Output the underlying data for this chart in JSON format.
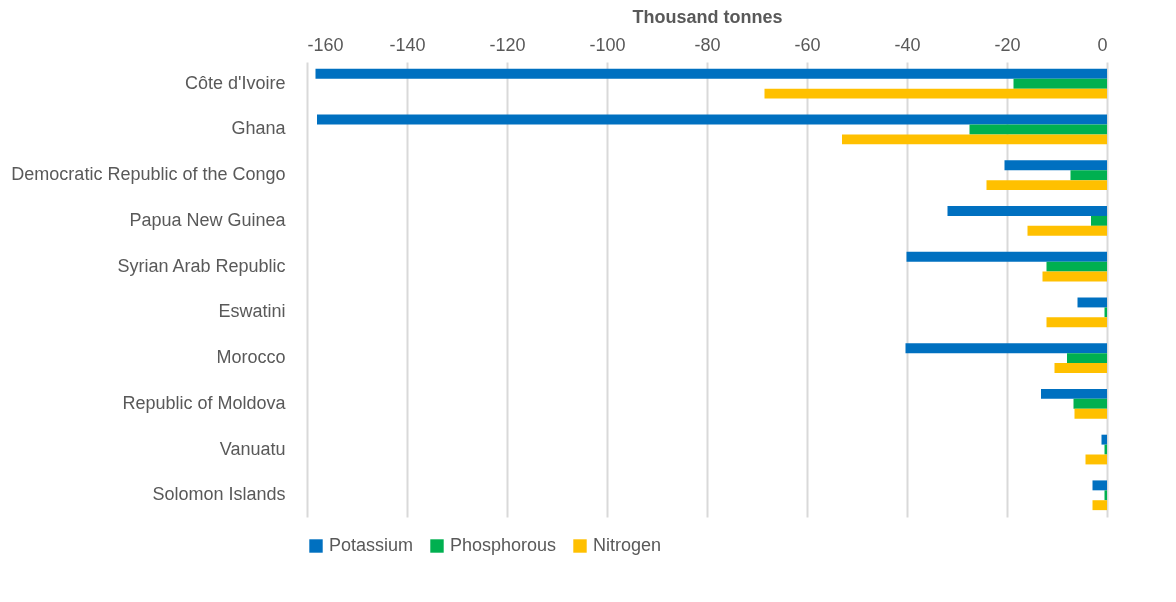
{
  "chart_data": {
    "type": "bar",
    "orientation": "horizontal",
    "xlabel": "Thousand tonnes",
    "categories": [
      "Côte d'Ivoire",
      "Ghana",
      "Democratic Republic of the Congo",
      "Papua New Guinea",
      "Syrian Arab Republic",
      "Eswatini",
      "Morocco",
      "Republic of Moldova",
      "Vanuatu",
      "Solomon Islands"
    ],
    "series": [
      {
        "name": "Potassium",
        "color": "#0070c0",
        "values": [
          -158.3,
          -158.0,
          -20.5,
          -31.9,
          -40.1,
          -5.9,
          -40.3,
          -13.2,
          -1.1,
          -2.9
        ]
      },
      {
        "name": "Phosphorous",
        "color": "#00b050",
        "values": [
          -18.7,
          -27.5,
          -7.3,
          -3.2,
          -12.1,
          -0.5,
          -8.0,
          -6.7,
          -0.5,
          -0.5
        ]
      },
      {
        "name": "Nitrogen",
        "color": "#ffc000",
        "values": [
          -68.5,
          -53.0,
          -24.1,
          -15.9,
          -12.9,
          -12.1,
          -10.5,
          -6.5,
          -4.3,
          -2.9
        ]
      }
    ],
    "xlim": [
      -160,
      0
    ],
    "xticks": [
      -160,
      -140,
      -120,
      -100,
      -80,
      -60,
      -40,
      -20,
      0
    ],
    "grid": "x",
    "legend": "bottom"
  }
}
